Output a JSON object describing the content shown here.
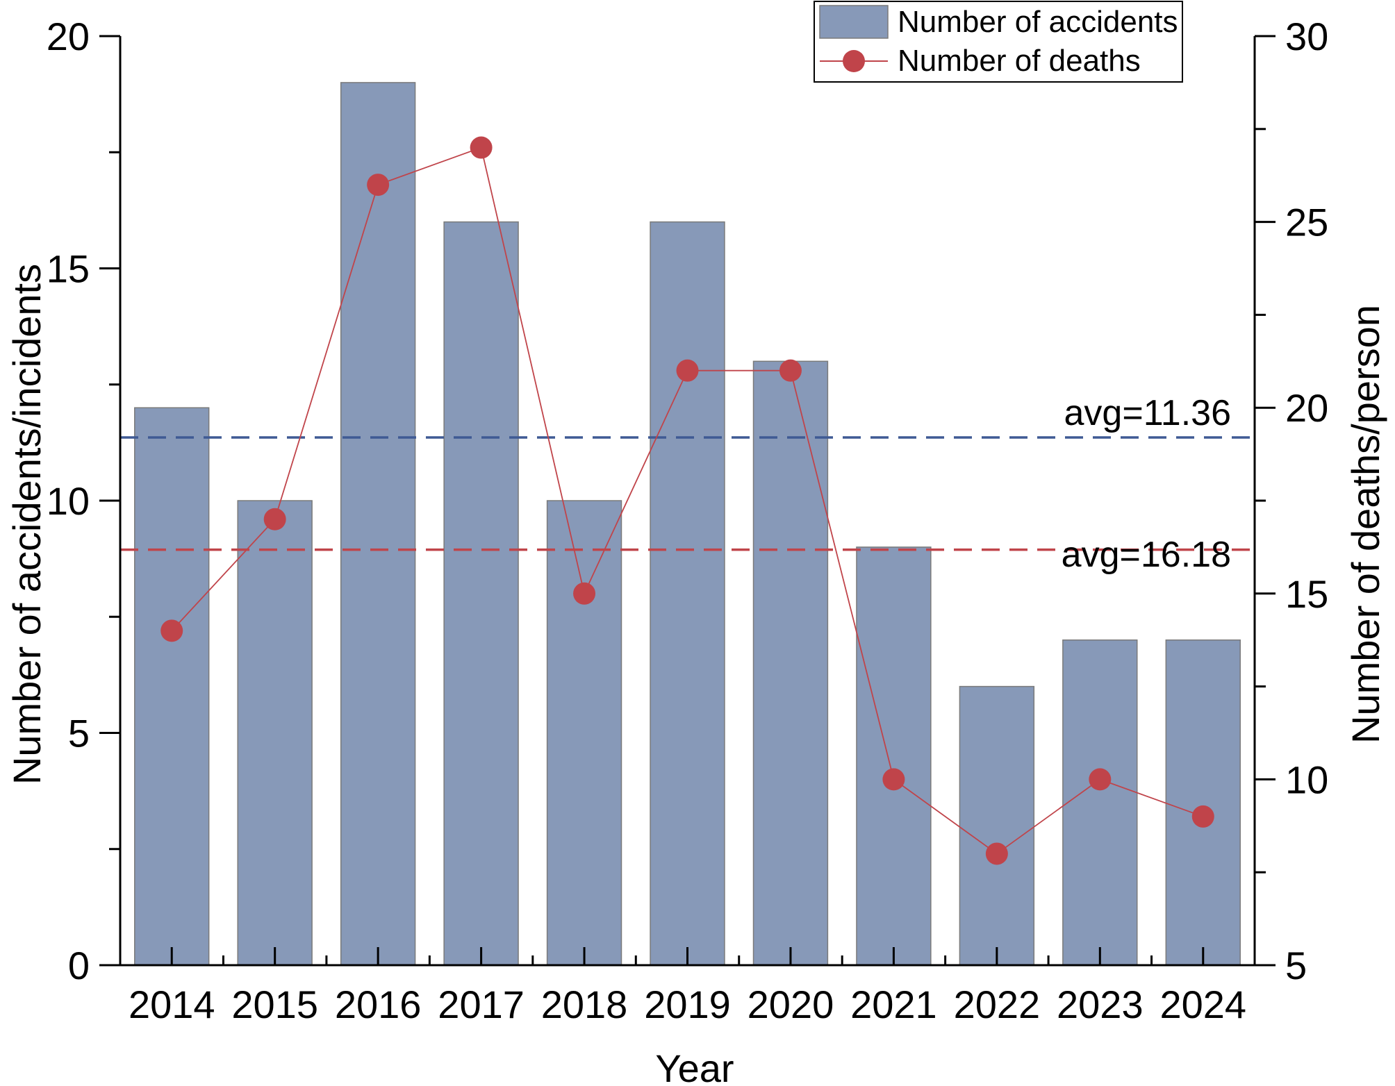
{
  "chart_data": {
    "type": "bar",
    "categories": [
      "2014",
      "2015",
      "2016",
      "2017",
      "2018",
      "2019",
      "2020",
      "2021",
      "2022",
      "2023",
      "2024"
    ],
    "series": [
      {
        "name": "Number of accidents",
        "type": "bar",
        "axis": "left",
        "color": "#8799b8",
        "values": [
          12,
          10,
          19,
          16,
          10,
          16,
          13,
          9,
          6,
          7,
          7
        ]
      },
      {
        "name": "Number of deaths",
        "type": "line",
        "axis": "right",
        "color": "#c0444a",
        "values": [
          14,
          17,
          26,
          27,
          15,
          21,
          21,
          10,
          8,
          10,
          9
        ]
      }
    ],
    "xlabel": "Year",
    "ylabel": "Number of accidents/incidents",
    "y2label": "Number of deaths/person",
    "ylim": [
      0,
      20
    ],
    "y2lim": [
      5,
      30
    ],
    "yticks": [
      "0",
      "5",
      "10",
      "15",
      "20"
    ],
    "y2ticks": [
      "5",
      "10",
      "15",
      "20",
      "25",
      "30"
    ],
    "averages": [
      {
        "label": "avg=11.36",
        "value": 11.36,
        "axis": "left",
        "color": "#3f5a94",
        "style": "dashed"
      },
      {
        "label": "avg=16.18",
        "value": 16.18,
        "axis": "right",
        "color": "#c0444a",
        "style": "dashed"
      }
    ],
    "legend_position": "top-right",
    "grid": false
  }
}
